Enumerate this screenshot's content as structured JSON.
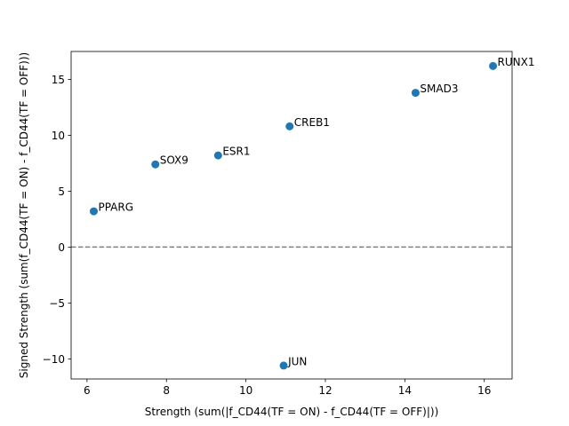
{
  "chart_data": {
    "type": "scatter",
    "title": "",
    "xlabel": "Strength (sum(|f_CD44(TF = ON) - f_CD44(TF = OFF)|))",
    "ylabel": "Signed Strength (sum(f_CD44(TF = ON) - f_CD44(TF = OFF)))",
    "xlim": [
      5.6,
      16.7
    ],
    "ylim": [
      -11.8,
      17.5
    ],
    "xticks": [
      6,
      8,
      10,
      12,
      14,
      16
    ],
    "yticks": [
      -10,
      -5,
      0,
      5,
      10,
      15
    ],
    "xtick_labels": [
      "6",
      "8",
      "10",
      "12",
      "14",
      "16"
    ],
    "ytick_labels": [
      "−10",
      "−5",
      "0",
      "5",
      "10",
      "15"
    ],
    "grid": false,
    "reference_line": {
      "y": 0,
      "style": "dashed",
      "color": "#808080"
    },
    "point_color": "#1f77b4",
    "points": [
      {
        "label": "PPARG",
        "x": 6.17,
        "y": 3.2
      },
      {
        "label": "SOX9",
        "x": 7.72,
        "y": 7.4
      },
      {
        "label": "ESR1",
        "x": 9.3,
        "y": 8.2
      },
      {
        "label": "JUN",
        "x": 10.95,
        "y": -10.6
      },
      {
        "label": "CREB1",
        "x": 11.1,
        "y": 10.8
      },
      {
        "label": "SMAD3",
        "x": 14.27,
        "y": 13.8
      },
      {
        "label": "RUNX1",
        "x": 16.22,
        "y": 16.2
      }
    ]
  }
}
